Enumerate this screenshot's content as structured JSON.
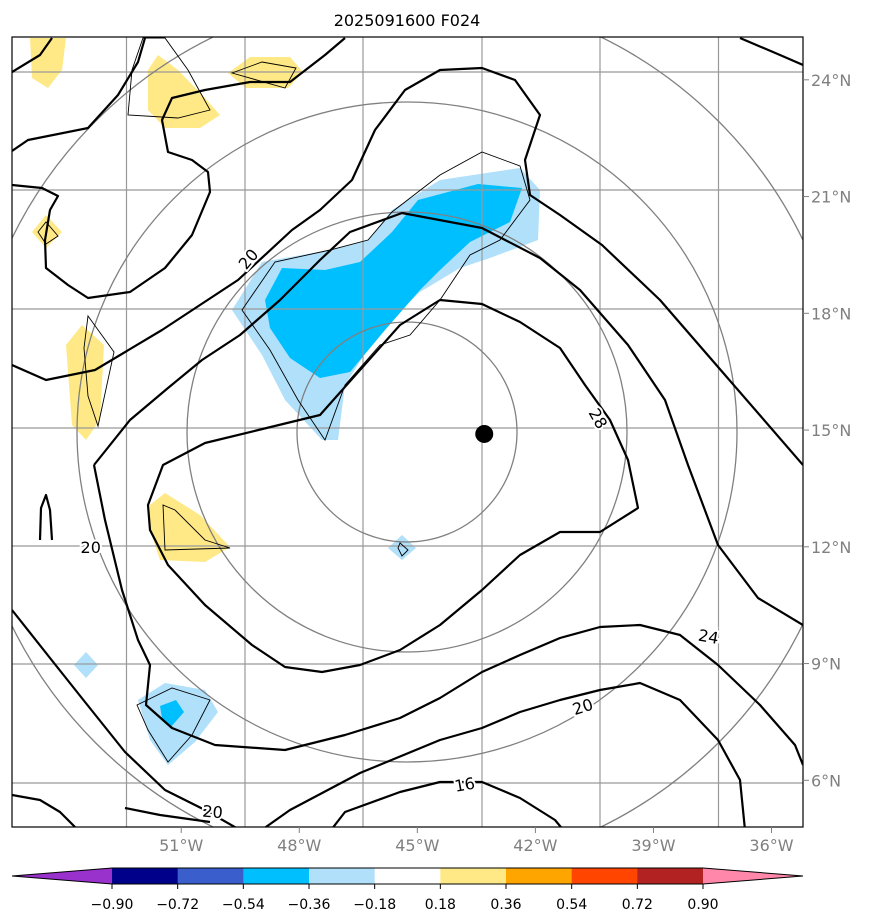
{
  "title": "2025091600 F024",
  "map": {
    "lon_range": [
      -55.3,
      -35.2
    ],
    "lat_range": [
      4.8,
      25.1
    ],
    "lon_ticks": [
      {
        "value": -51,
        "label": "51°W"
      },
      {
        "value": -48,
        "label": "48°W"
      },
      {
        "value": -45,
        "label": "45°W"
      },
      {
        "value": -42,
        "label": "42°W"
      },
      {
        "value": -39,
        "label": "39°W"
      },
      {
        "value": -36,
        "label": "36°W"
      }
    ],
    "lat_ticks": [
      {
        "value": 24,
        "label": "24°N"
      },
      {
        "value": 21,
        "label": "21°N"
      },
      {
        "value": 18,
        "label": "18°N"
      },
      {
        "value": 15,
        "label": "15°N"
      },
      {
        "value": 12,
        "label": "12°N"
      },
      {
        "value": 9,
        "label": "9°N"
      },
      {
        "value": 6,
        "label": "6°N"
      }
    ],
    "gridlines": true,
    "storm_center": {
      "lon": -43.3,
      "lat": 14.9,
      "color": "#000000"
    },
    "range_rings_color": "#808080",
    "contour_labels": [
      {
        "text": "20",
        "lon": -49.3,
        "lat": 19.4,
        "rotation": -50
      },
      {
        "text": "28",
        "lon": -40.4,
        "lat": 15.3,
        "rotation": 60
      },
      {
        "text": "20",
        "lon": -53.3,
        "lat": 12.0,
        "rotation": 0
      },
      {
        "text": "24",
        "lon": -37.6,
        "lat": 9.7,
        "rotation": 10
      },
      {
        "text": "20",
        "lon": -40.8,
        "lat": 7.9,
        "rotation": -18
      },
      {
        "text": "16",
        "lon": -43.8,
        "lat": 5.9,
        "rotation": -10
      },
      {
        "text": "20",
        "lon": -50.2,
        "lat": 5.2,
        "rotation": 5
      }
    ]
  },
  "colorbar": {
    "ticks": [
      "−0.90",
      "−0.72",
      "−0.54",
      "−0.36",
      "−0.18",
      "0.18",
      "0.36",
      "0.54",
      "0.72",
      "0.90"
    ],
    "colors": [
      "#9932cc",
      "#00008b",
      "#3a5fcd",
      "#00bfff",
      "#b0e0fa",
      "#ffffff",
      "#ffe986",
      "#ffa500",
      "#ff4500",
      "#b22222",
      "#ff88aa"
    ]
  }
}
